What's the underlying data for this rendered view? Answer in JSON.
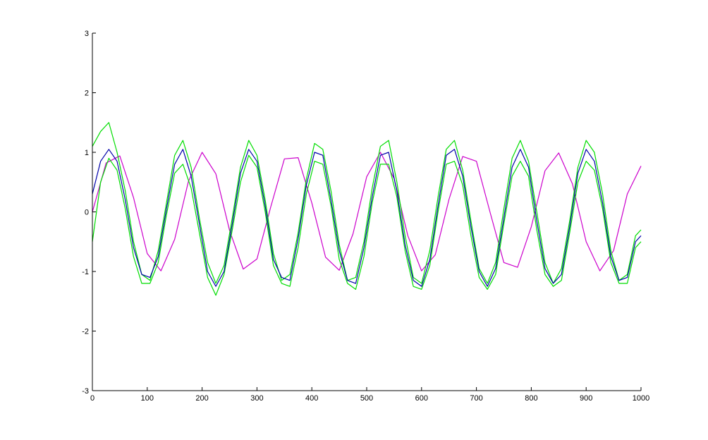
{
  "chart_data": {
    "type": "line",
    "title": "",
    "xlabel": "",
    "ylabel": "",
    "xlim": [
      0,
      1000
    ],
    "ylim": [
      -3,
      3
    ],
    "x_ticks": [
      0,
      100,
      200,
      300,
      400,
      500,
      600,
      700,
      800,
      900,
      1000
    ],
    "y_ticks": [
      -3,
      -2,
      -1,
      0,
      1,
      2,
      3
    ],
    "x_tick_labels": [
      "0",
      "100",
      "200",
      "300",
      "400",
      "500",
      "600",
      "700",
      "800",
      "900",
      "1000"
    ],
    "y_tick_labels": [
      "-3",
      "-2",
      "-1",
      "0",
      "1",
      "2",
      "3"
    ],
    "grid": false,
    "series": [
      {
        "color": "#cc00cc",
        "style": "line",
        "description_curve": "sine",
        "x": [
          0,
          25,
          50,
          75,
          100,
          125,
          150,
          175,
          200,
          225,
          250,
          275,
          300,
          325,
          350,
          375,
          400,
          425,
          450,
          475,
          500,
          525,
          550,
          575,
          600,
          625,
          650,
          675,
          700,
          725,
          750,
          775,
          800,
          825,
          850,
          875,
          900,
          925,
          950,
          975,
          1000
        ],
        "y": [
          0.0,
          0.82,
          0.94,
          0.24,
          -0.7,
          -0.99,
          -0.46,
          0.51,
          1.0,
          0.64,
          -0.31,
          -0.96,
          -0.79,
          0.08,
          0.89,
          0.91,
          0.15,
          -0.76,
          -0.98,
          -0.37,
          0.59,
          1.0,
          0.56,
          -0.4,
          -0.99,
          -0.72,
          0.21,
          0.93,
          0.85,
          -0.01,
          -0.85,
          -0.93,
          -0.25,
          0.69,
          0.99,
          0.47,
          -0.5,
          -0.99,
          -0.65,
          0.3,
          0.77
        ]
      },
      {
        "color": "#00dd00",
        "style": "line",
        "x": [
          0,
          15,
          30,
          45,
          60,
          75,
          90,
          105,
          120,
          135,
          150,
          165,
          180,
          195,
          210,
          225,
          240,
          255,
          270,
          285,
          300,
          315,
          330,
          345,
          360,
          375,
          390,
          405,
          420,
          435,
          450,
          465,
          480,
          495,
          510,
          525,
          540,
          555,
          570,
          585,
          600,
          615,
          630,
          645,
          660,
          675,
          690,
          705,
          720,
          735,
          750,
          765,
          780,
          795,
          810,
          825,
          840,
          855,
          870,
          885,
          900,
          915,
          930,
          945,
          960,
          975,
          990,
          1000
        ],
        "y": [
          1.1,
          1.35,
          1.5,
          1.0,
          0.35,
          -0.5,
          -1.05,
          -1.15,
          -0.65,
          0.15,
          0.95,
          1.2,
          0.75,
          -0.1,
          -0.85,
          -1.2,
          -0.9,
          -0.1,
          0.75,
          1.2,
          0.95,
          0.2,
          -0.7,
          -1.15,
          -1.05,
          -0.35,
          0.55,
          1.15,
          1.05,
          0.35,
          -0.55,
          -1.15,
          -1.1,
          -0.5,
          0.4,
          1.1,
          1.2,
          0.5,
          -0.4,
          -1.1,
          -1.2,
          -0.65,
          0.25,
          1.05,
          1.2,
          0.7,
          -0.15,
          -0.95,
          -1.2,
          -0.85,
          0.05,
          0.9,
          1.2,
          0.85,
          0.0,
          -0.85,
          -1.2,
          -0.95,
          -0.15,
          0.75,
          1.2,
          1.0,
          0.3,
          -0.65,
          -1.15,
          -1.05,
          -0.4,
          -0.3
        ]
      },
      {
        "color": "#00dd00",
        "style": "line",
        "x": [
          0,
          15,
          30,
          45,
          60,
          75,
          90,
          105,
          120,
          135,
          150,
          165,
          180,
          195,
          210,
          225,
          240,
          255,
          270,
          285,
          300,
          315,
          330,
          345,
          360,
          375,
          390,
          405,
          420,
          435,
          450,
          465,
          480,
          495,
          510,
          525,
          540,
          555,
          570,
          585,
          600,
          615,
          630,
          645,
          660,
          675,
          690,
          705,
          720,
          735,
          750,
          765,
          780,
          795,
          810,
          825,
          840,
          855,
          870,
          885,
          900,
          915,
          930,
          945,
          960,
          975,
          990,
          1000
        ],
        "y": [
          -0.5,
          0.5,
          0.9,
          0.7,
          0.05,
          -0.75,
          -1.2,
          -1.2,
          -0.85,
          -0.05,
          0.65,
          0.8,
          0.4,
          -0.35,
          -1.1,
          -1.4,
          -1.05,
          -0.3,
          0.5,
          0.95,
          0.75,
          0.0,
          -0.9,
          -1.2,
          -1.25,
          -0.6,
          0.3,
          0.85,
          0.8,
          0.1,
          -0.8,
          -1.2,
          -1.3,
          -0.75,
          0.15,
          0.8,
          0.8,
          0.25,
          -0.65,
          -1.25,
          -1.3,
          -0.9,
          0.0,
          0.8,
          0.85,
          0.45,
          -0.4,
          -1.1,
          -1.3,
          -1.05,
          -0.2,
          0.6,
          0.85,
          0.6,
          -0.3,
          -1.05,
          -1.25,
          -1.15,
          -0.35,
          0.5,
          0.85,
          0.7,
          0.05,
          -0.85,
          -1.2,
          -1.2,
          -0.6,
          -0.5
        ]
      },
      {
        "color": "#0000aa",
        "style": "line",
        "x": [
          0,
          15,
          30,
          45,
          60,
          75,
          90,
          105,
          120,
          135,
          150,
          165,
          180,
          195,
          210,
          225,
          240,
          255,
          270,
          285,
          300,
          315,
          330,
          345,
          360,
          375,
          390,
          405,
          420,
          435,
          450,
          465,
          480,
          495,
          510,
          525,
          540,
          555,
          570,
          585,
          600,
          615,
          630,
          645,
          660,
          675,
          690,
          705,
          720,
          735,
          750,
          765,
          780,
          795,
          810,
          825,
          840,
          855,
          870,
          885,
          900,
          915,
          930,
          945,
          960,
          975,
          990,
          1000
        ],
        "y": [
          0.3,
          0.85,
          1.05,
          0.85,
          0.2,
          -0.6,
          -1.05,
          -1.1,
          -0.75,
          0.05,
          0.8,
          1.05,
          0.6,
          -0.2,
          -1.0,
          -1.25,
          -1.0,
          -0.2,
          0.65,
          1.05,
          0.85,
          0.1,
          -0.8,
          -1.1,
          -1.15,
          -0.45,
          0.45,
          1.0,
          0.95,
          0.2,
          -0.65,
          -1.15,
          -1.2,
          -0.6,
          0.25,
          0.95,
          1.0,
          0.35,
          -0.55,
          -1.15,
          -1.25,
          -0.8,
          0.1,
          0.95,
          1.05,
          0.6,
          -0.25,
          -1.0,
          -1.25,
          -0.95,
          -0.1,
          0.75,
          1.05,
          0.75,
          -0.15,
          -0.95,
          -1.2,
          -1.05,
          -0.25,
          0.65,
          1.05,
          0.85,
          0.15,
          -0.75,
          -1.15,
          -1.1,
          -0.5,
          -0.4
        ]
      }
    ]
  }
}
